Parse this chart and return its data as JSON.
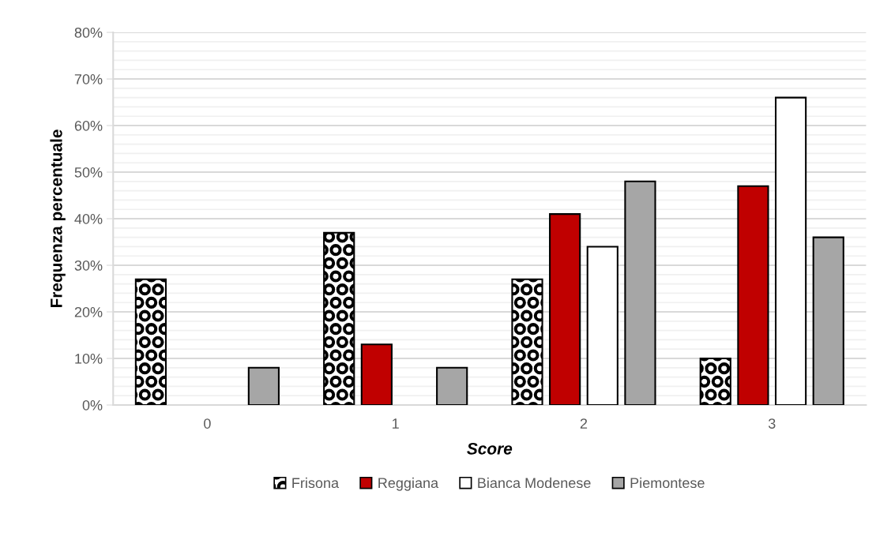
{
  "chart_data": {
    "type": "bar",
    "xlabel": "Score",
    "ylabel": "Frequenza percentuale",
    "categories": [
      "0",
      "1",
      "2",
      "3"
    ],
    "series": [
      {
        "name": "Frisona",
        "color": "#000000",
        "values": [
          27,
          37,
          27,
          10
        ]
      },
      {
        "name": "Reggiana",
        "color": "#c00000",
        "values": [
          0,
          13,
          41,
          47
        ]
      },
      {
        "name": "Bianca Modenese",
        "color": "#ffffff",
        "values": [
          0,
          0,
          34,
          66
        ]
      },
      {
        "name": "Piemontese",
        "color": "#a6a6a6",
        "values": [
          8,
          8,
          48,
          36
        ]
      }
    ],
    "ylim": [
      0,
      80
    ],
    "yticks": [
      {
        "value": 0,
        "label": "0%"
      },
      {
        "value": 10,
        "label": "10%"
      },
      {
        "value": 20,
        "label": "20%"
      },
      {
        "value": 30,
        "label": "30%"
      },
      {
        "value": 40,
        "label": "40%"
      },
      {
        "value": 50,
        "label": "50%"
      },
      {
        "value": 60,
        "label": "60%"
      },
      {
        "value": 70,
        "label": "70%"
      },
      {
        "value": 80,
        "label": "80%"
      }
    ],
    "grid": "y",
    "legend": "bottom"
  }
}
